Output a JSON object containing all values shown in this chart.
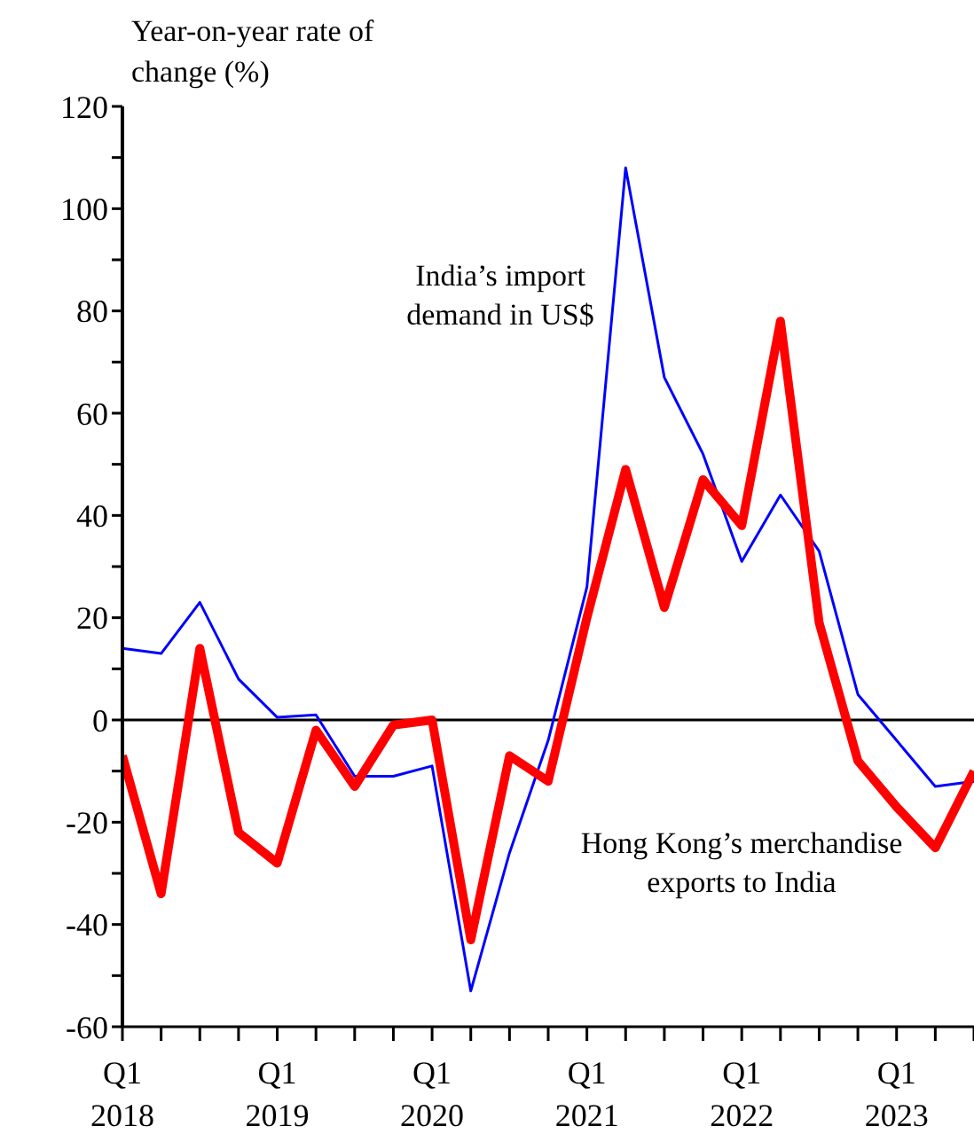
{
  "chart_data": {
    "type": "line",
    "ylabel": "Year-on-year rate of change (%)",
    "categories": [
      "Q1 2018",
      null,
      null,
      null,
      "Q1 2019",
      null,
      null,
      null,
      "Q1 2020",
      null,
      null,
      null,
      "Q1 2021",
      null,
      null,
      null,
      "Q1 2022",
      null,
      null,
      null,
      "Q1 2023",
      null,
      null
    ],
    "series": [
      {
        "name": "India’s import demand in US$",
        "color": "#0000ff",
        "values": [
          14,
          13,
          23,
          8,
          0.5,
          1,
          -11,
          -11,
          -9,
          -53,
          -26,
          -4,
          26,
          108,
          67,
          52,
          31,
          44,
          33,
          5,
          -4,
          -13,
          -12
        ]
      },
      {
        "name": "Hong Kong’s merchandise exports to India",
        "color": "#ff0000",
        "values": [
          -7,
          -34,
          14,
          -22,
          -28,
          -2,
          -13,
          -1,
          0,
          -43,
          -7,
          -12,
          20,
          49,
          22,
          47,
          38,
          78,
          19,
          -8,
          -17,
          -25,
          -10
        ]
      }
    ],
    "ylim": [
      -60,
      120
    ],
    "yticks": [
      -60,
      {
        "value": -50,
        "label": null
      },
      -40,
      {
        "value": -30,
        "label": null
      },
      -20,
      {
        "value": -10,
        "label": null
      },
      0,
      {
        "value": 10,
        "label": null
      },
      20,
      {
        "value": 30,
        "label": null
      },
      40,
      {
        "value": 50,
        "label": null
      },
      60,
      {
        "value": 70,
        "label": null
      },
      80,
      {
        "value": 90,
        "label": null
      },
      100,
      {
        "value": 110,
        "label": null
      },
      120
    ],
    "ref_lines": [
      {
        "axis": "y",
        "value": 0,
        "color": "#000000"
      }
    ],
    "grid": false,
    "legend": false,
    "marker": "none",
    "line_style": "solid"
  }
}
